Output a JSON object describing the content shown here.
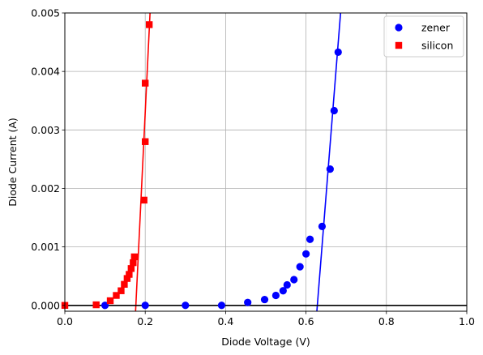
{
  "chart_data": {
    "type": "scatter",
    "xlabel": "Diode Voltage (V)",
    "ylabel": "Diode Current (A)",
    "xlim": [
      0,
      1.0
    ],
    "ylim": [
      -0.0001,
      0.005
    ],
    "xticks": [
      0.0,
      0.2,
      0.4,
      0.6,
      0.8,
      1.0
    ],
    "xtick_labels": [
      "0.0",
      "0.2",
      "0.4",
      "0.6",
      "0.8",
      "1.0"
    ],
    "yticks": [
      0.0,
      0.001,
      0.002,
      0.003,
      0.004,
      0.005
    ],
    "ytick_labels": [
      "0.000",
      "0.001",
      "0.002",
      "0.003",
      "0.004",
      "0.005"
    ],
    "grid": true,
    "legend_position": "top-right",
    "series": [
      {
        "name": "zener",
        "color": "#0000ff",
        "marker": "circle",
        "x": [
          0.1,
          0.2,
          0.3,
          0.39,
          0.455,
          0.497,
          0.525,
          0.543,
          0.553,
          0.57,
          0.585,
          0.6,
          0.61,
          0.64,
          0.66,
          0.67,
          0.68
        ],
        "y": [
          0.0,
          0.0,
          0.0,
          0.0,
          5e-05,
          0.0001,
          0.00017,
          0.00025,
          0.00035,
          0.00044,
          0.00066,
          0.00088,
          0.00113,
          0.00135,
          0.00233,
          0.00333,
          0.00433
        ]
      },
      {
        "name": "silicon",
        "color": "#ff0000",
        "marker": "square",
        "x": [
          0.0,
          0.078,
          0.113,
          0.128,
          0.14,
          0.148,
          0.155,
          0.16,
          0.165,
          0.17,
          0.173,
          0.197,
          0.2,
          0.2,
          0.21
        ],
        "y": [
          0.0,
          1e-05,
          8e-05,
          0.00017,
          0.00025,
          0.00036,
          0.00046,
          0.00053,
          0.00063,
          0.00073,
          0.00083,
          0.0018,
          0.0028,
          0.0038,
          0.0048
        ]
      }
    ],
    "lines": [
      {
        "color": "#ff0000",
        "x": [
          0.176,
          0.212
        ],
        "y": [
          -0.0001,
          0.005
        ]
      },
      {
        "color": "#0000ff",
        "x": [
          0.627,
          0.686
        ],
        "y": [
          -0.0001,
          0.005
        ]
      },
      {
        "color": "#000000",
        "x": [
          0.0,
          1.0
        ],
        "y": [
          0.0,
          0.0
        ]
      }
    ]
  }
}
